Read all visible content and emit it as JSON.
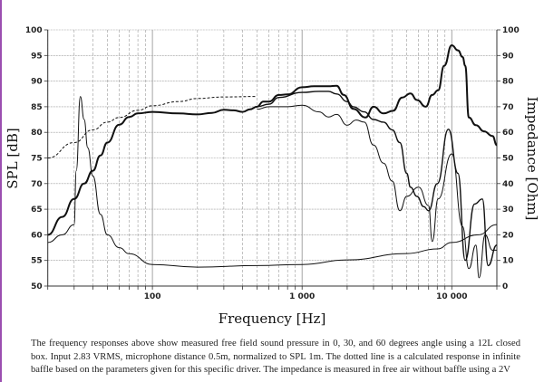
{
  "chart_data": {
    "type": "line",
    "xlabel": "Frequency [Hz]",
    "ylabel": "SPL [dB]",
    "y2label": "Impedance [Ohm]",
    "xscale": "log",
    "xlim": [
      20,
      20000
    ],
    "ylim": [
      50,
      100
    ],
    "y2lim": [
      0,
      100
    ],
    "grid": true,
    "x_ticks": [
      {
        "value": 100,
        "label": "100"
      },
      {
        "value": 1000,
        "label": "1 000"
      },
      {
        "value": 10000,
        "label": "10 000"
      }
    ],
    "y_ticks": [
      "50",
      "55",
      "60",
      "65",
      "70",
      "75",
      "80",
      "85",
      "90",
      "95",
      "100"
    ],
    "y2_ticks": [
      "0",
      "10",
      "20",
      "30",
      "40",
      "50",
      "60",
      "70",
      "80",
      "90",
      "100"
    ],
    "line_color": "#111111",
    "grid_color": "#9a9a9a",
    "series": [
      {
        "axis": "left",
        "style": "thick",
        "points": [
          [
            20,
            60
          ],
          [
            25,
            63.5
          ],
          [
            30,
            67
          ],
          [
            35,
            70
          ],
          [
            40,
            72.5
          ],
          [
            45,
            75.5
          ],
          [
            50,
            78
          ],
          [
            60,
            81.5
          ],
          [
            70,
            83
          ],
          [
            80,
            83.7
          ],
          [
            100,
            84
          ],
          [
            150,
            83.7
          ],
          [
            200,
            83.5
          ],
          [
            250,
            83.8
          ],
          [
            300,
            84.4
          ],
          [
            350,
            84.3
          ],
          [
            400,
            84
          ],
          [
            450,
            84.5
          ],
          [
            500,
            85
          ],
          [
            550,
            86
          ],
          [
            600,
            86
          ],
          [
            700,
            87.3
          ],
          [
            800,
            87.4
          ],
          [
            1000,
            88.8
          ],
          [
            1200,
            89
          ],
          [
            1500,
            89
          ],
          [
            1700,
            89.1
          ],
          [
            1900,
            87.3
          ],
          [
            2200,
            84.6
          ],
          [
            2650,
            82.9
          ],
          [
            3000,
            85
          ],
          [
            3500,
            83.7
          ],
          [
            4050,
            84.2
          ],
          [
            4660,
            86.8
          ],
          [
            5300,
            87.6
          ],
          [
            5850,
            86.3
          ],
          [
            6700,
            85
          ],
          [
            7400,
            87.3
          ],
          [
            8100,
            88.2
          ],
          [
            8900,
            93
          ],
          [
            10000,
            97
          ],
          [
            11000,
            96
          ],
          [
            11800,
            94.7
          ],
          [
            12300,
            93
          ],
          [
            13000,
            82.9
          ],
          [
            14500,
            81.4
          ],
          [
            16400,
            80.2
          ],
          [
            18700,
            79.3
          ],
          [
            20000,
            77.5
          ]
        ]
      },
      {
        "axis": "left",
        "style": "medium",
        "points": [
          [
            500,
            85
          ],
          [
            600,
            85.5
          ],
          [
            700,
            86.8
          ],
          [
            1000,
            87.8
          ],
          [
            1300,
            88
          ],
          [
            1500,
            88
          ],
          [
            1700,
            87.5
          ],
          [
            2000,
            86
          ],
          [
            2200,
            85
          ],
          [
            2600,
            84
          ],
          [
            3000,
            82.5
          ],
          [
            3500,
            82
          ],
          [
            4000,
            80.5
          ],
          [
            4500,
            78
          ],
          [
            5000,
            72
          ],
          [
            5300,
            69.3
          ],
          [
            5850,
            67.5
          ],
          [
            6500,
            65.5
          ],
          [
            7000,
            64.7
          ],
          [
            8000,
            70
          ],
          [
            9500,
            80.6
          ],
          [
            11000,
            72
          ],
          [
            12300,
            55
          ],
          [
            14200,
            66
          ],
          [
            16000,
            67
          ],
          [
            17500,
            54
          ],
          [
            20000,
            58
          ]
        ]
      },
      {
        "axis": "left",
        "style": "thin",
        "points": [
          [
            500,
            84.5
          ],
          [
            600,
            85
          ],
          [
            800,
            85
          ],
          [
            1000,
            85.3
          ],
          [
            1300,
            84
          ],
          [
            1500,
            83
          ],
          [
            1700,
            83.5
          ],
          [
            2000,
            81.4
          ],
          [
            2300,
            82.4
          ],
          [
            2600,
            82
          ],
          [
            3000,
            77.5
          ],
          [
            3500,
            74
          ],
          [
            4000,
            70.5
          ],
          [
            4500,
            64.7
          ],
          [
            5000,
            67.5
          ],
          [
            6000,
            69.3
          ],
          [
            7000,
            65.7
          ],
          [
            7400,
            58.7
          ],
          [
            8100,
            67
          ],
          [
            10000,
            75.8
          ],
          [
            11800,
            61.6
          ],
          [
            13000,
            53.4
          ],
          [
            14500,
            58
          ],
          [
            15200,
            51.6
          ],
          [
            16700,
            60
          ],
          [
            18700,
            57
          ],
          [
            20000,
            57
          ]
        ]
      },
      {
        "axis": "left",
        "style": "dashed",
        "points": [
          [
            20,
            75
          ],
          [
            30,
            78
          ],
          [
            40,
            80.5
          ],
          [
            50,
            82
          ],
          [
            60,
            82.9
          ],
          [
            80,
            84.3
          ],
          [
            100,
            85.2
          ],
          [
            150,
            86
          ],
          [
            200,
            86.6
          ],
          [
            300,
            86.9
          ],
          [
            500,
            87
          ]
        ]
      },
      {
        "axis": "right",
        "style": "thin",
        "points": [
          [
            20,
            17
          ],
          [
            25,
            20
          ],
          [
            30,
            24
          ],
          [
            31,
            45
          ],
          [
            33,
            74
          ],
          [
            35,
            65
          ],
          [
            37,
            54
          ],
          [
            40,
            43
          ],
          [
            45,
            28
          ],
          [
            50,
            20
          ],
          [
            60,
            15
          ],
          [
            70,
            12.6
          ],
          [
            100,
            8.4
          ],
          [
            200,
            7.4
          ],
          [
            500,
            8
          ],
          [
            1000,
            8.4
          ],
          [
            2000,
            10.2
          ],
          [
            5000,
            12.7
          ],
          [
            8000,
            14.5
          ],
          [
            10000,
            17
          ],
          [
            15000,
            20
          ],
          [
            20000,
            24
          ]
        ]
      }
    ]
  },
  "caption": "The frequency responses above show measured free field sound pressure in 0, 30, and 60 degrees angle using a 12L closed box. Input 2.83 VRMS, microphone distance 0.5m, normalized to SPL 1m. The dotted line is a calculated response in infinite baffle based on the parameters given for this specific driver. The impedance is measured in free air without baffle using a 2V"
}
